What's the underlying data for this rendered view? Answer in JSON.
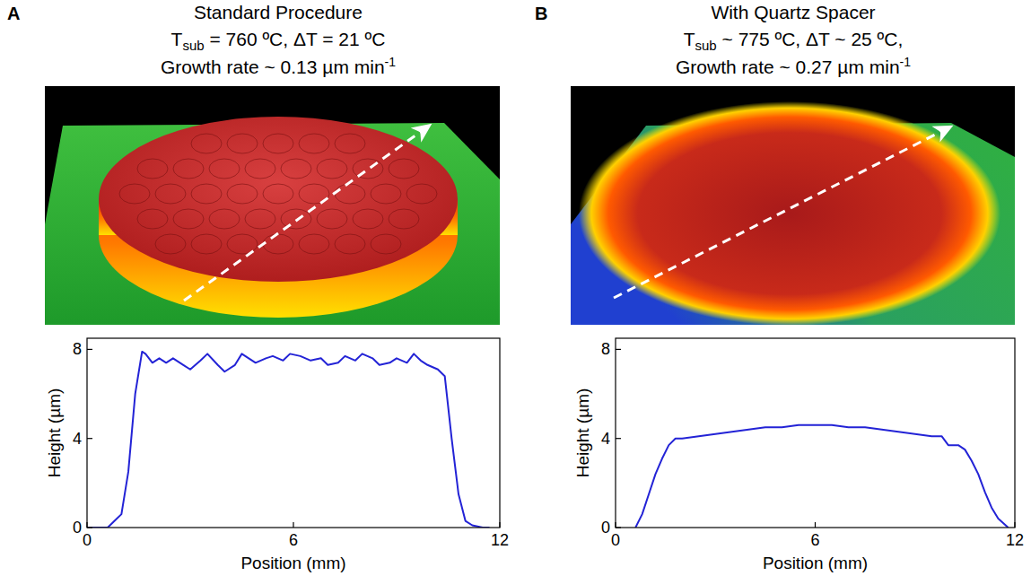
{
  "chart_data": [
    {
      "type": "line",
      "panel": "A",
      "title": "Standard Procedure",
      "conditions": {
        "text": "T",
        "sub": "sub",
        "rest": " = 760 ºC, ΔT = 21 ºC"
      },
      "growth_rate": {
        "text": "Growth rate ~ 0.13 µm min",
        "sup": "-1"
      },
      "x_label": "Position (mm)",
      "y_label": "Height (µm)",
      "x": [
        0,
        0.6,
        0.8,
        1.0,
        1.2,
        1.4,
        1.6,
        1.7,
        1.9,
        2.1,
        2.3,
        2.5,
        2.8,
        3.0,
        3.3,
        3.5,
        3.8,
        4.0,
        4.3,
        4.5,
        4.7,
        4.9,
        5.2,
        5.4,
        5.7,
        5.9,
        6.2,
        6.5,
        6.8,
        7.0,
        7.3,
        7.5,
        7.8,
        8.0,
        8.3,
        8.5,
        8.8,
        9.0,
        9.3,
        9.5,
        9.7,
        9.9,
        10.2,
        10.4,
        10.6,
        10.8,
        11.0,
        11.2,
        11.5,
        11.7
      ],
      "values": [
        0,
        0,
        0.3,
        0.6,
        2.5,
        6.0,
        7.9,
        7.8,
        7.4,
        7.6,
        7.4,
        7.6,
        7.3,
        7.1,
        7.5,
        7.8,
        7.3,
        7.0,
        7.3,
        7.8,
        7.6,
        7.4,
        7.6,
        7.7,
        7.5,
        7.8,
        7.7,
        7.5,
        7.6,
        7.3,
        7.4,
        7.7,
        7.5,
        7.8,
        7.6,
        7.3,
        7.4,
        7.6,
        7.4,
        7.8,
        7.5,
        7.3,
        7.1,
        6.8,
        4.0,
        1.5,
        0.3,
        0.1,
        0,
        0
      ],
      "color": "#2323d6",
      "xlim": [
        0,
        12
      ],
      "xticks": [
        0,
        6,
        12
      ],
      "ylim": [
        0,
        8.5
      ],
      "yticks": [
        0,
        4,
        8
      ],
      "grid": false
    },
    {
      "type": "line",
      "panel": "B",
      "title": "With Quartz Spacer",
      "conditions": {
        "text": "T",
        "sub": "sub",
        "rest": " ~ 775 ºC, ΔT ~ 25 ºC,"
      },
      "growth_rate": {
        "text": "Growth rate ~ 0.27 µm min",
        "sup": "-1"
      },
      "x_label": "Position (mm)",
      "y_label": "Height (µm)",
      "x": [
        0.6,
        0.8,
        1.0,
        1.2,
        1.4,
        1.6,
        1.8,
        2.0,
        2.5,
        3.0,
        3.5,
        4.0,
        4.5,
        5.0,
        5.5,
        6.0,
        6.5,
        7.0,
        7.5,
        8.0,
        8.5,
        9.0,
        9.5,
        9.8,
        10.0,
        10.3,
        10.5,
        10.7,
        10.9,
        11.1,
        11.3,
        11.5,
        11.8
      ],
      "values": [
        0,
        0.6,
        1.5,
        2.4,
        3.1,
        3.7,
        4.0,
        4.0,
        4.1,
        4.2,
        4.3,
        4.4,
        4.5,
        4.5,
        4.6,
        4.6,
        4.6,
        4.5,
        4.5,
        4.4,
        4.3,
        4.2,
        4.1,
        4.1,
        3.7,
        3.7,
        3.5,
        3.0,
        2.4,
        1.6,
        0.9,
        0.4,
        0
      ],
      "color": "#2323d6",
      "xlim": [
        0,
        12
      ],
      "xticks": [
        0,
        6,
        12
      ],
      "ylim": [
        0,
        8.5
      ],
      "yticks": [
        0,
        4,
        8
      ],
      "grid": false
    }
  ]
}
